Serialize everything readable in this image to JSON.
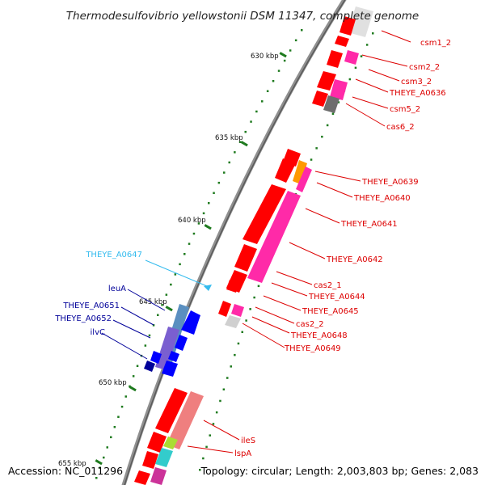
{
  "title": "Thermodesulfovibrio yellowstonii DSM 11347, complete genome",
  "footer": {
    "accession": "Accession: NC_011296",
    "summary": "Topology: circular; Length: 2,003,803 bp; Genes: 2,083"
  },
  "scale": {
    "ticks": [
      "630 kbp",
      "635 kbp",
      "640 kbp",
      "645 kbp",
      "650 kbp",
      "655 kbp"
    ]
  },
  "colors": {
    "backbone": "#8a8a8a",
    "tick": "#1e7a1e",
    "forward_cds": "#ff0000",
    "reverse_cds": "#0000ff",
    "hypothetical": "#ff2aa8",
    "label_red": "#dd0000",
    "label_blue": "#000099",
    "label_cyan": "#33bbee"
  },
  "gene_labels": {
    "right": [
      "csm1_2",
      "csm2_2",
      "csm3_2",
      "THEYE_A0636",
      "csm5_2",
      "cas6_2",
      "THEYE_A0639",
      "THEYE_A0640",
      "THEYE_A0641",
      "THEYE_A0642",
      "cas2_1",
      "THEYE_A0644",
      "THEYE_A0645",
      "cas2_2",
      "THEYE_A0648",
      "THEYE_A0649",
      "ileS",
      "lspA"
    ],
    "left": [
      "THEYE_A0647",
      "leuA",
      "THEYE_A0651",
      "THEYE_A0652",
      "ilvC"
    ]
  }
}
